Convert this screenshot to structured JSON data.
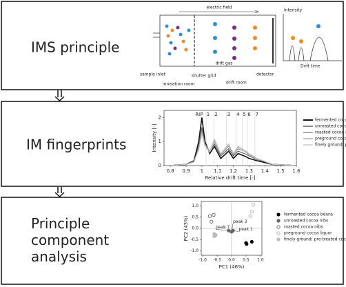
{
  "panels": [
    {
      "label": "IMS principle",
      "schematic": {
        "labels": [
          "electric field",
          "drift gas",
          "sample inlet",
          "ionisation room",
          "shutter grid",
          "drift room",
          "detector"
        ],
        "spectrum_labels": [
          "Intensity",
          "Drift time"
        ]
      }
    },
    {
      "label": "IM fingerprints",
      "chart": {
        "type": "line",
        "x_label": "Relative drift time [-]",
        "y_label": "Intensity [-]",
        "xlim": [
          0.76,
          1.6
        ],
        "ylim": [
          0,
          2.3
        ],
        "xticks": [
          0.8,
          0.9,
          1,
          1.1,
          1.2,
          1.3,
          1.4,
          1.5,
          1.6
        ],
        "yticks": [
          0,
          1,
          2
        ],
        "peak_labels": [
          "RIP",
          "1",
          "2",
          "3",
          "4",
          "5",
          "6",
          "7"
        ],
        "x": [
          0.8,
          0.9,
          0.95,
          0.98,
          1.0,
          1.02,
          1.05,
          1.08,
          1.12,
          1.17,
          1.2,
          1.23,
          1.27,
          1.3,
          1.35,
          1.45,
          1.6
        ],
        "series": [
          {
            "name": "fermented cocoa beans",
            "color": "#111111",
            "width": 1.6,
            "values": [
              0,
              0.05,
              0.2,
              1.0,
              2.0,
              1.0,
              0.5,
              0.8,
              0.3,
              0.6,
              0.3,
              0.5,
              0.4,
              0.3,
              0.2,
              0.05,
              0
            ]
          },
          {
            "name": "unroasted cocoa nibs",
            "color": "#555555",
            "width": 1,
            "values": [
              0,
              0.05,
              0.2,
              0.8,
              1.6,
              0.9,
              0.6,
              0.9,
              0.4,
              0.7,
              0.4,
              0.6,
              0.5,
              0.4,
              0.25,
              0.05,
              0
            ]
          },
          {
            "name": "roasted cocoa nibs",
            "color": "#888888",
            "width": 1,
            "values": [
              0,
              0.05,
              0.15,
              0.7,
              1.5,
              0.9,
              0.6,
              1.0,
              0.45,
              0.8,
              0.45,
              0.7,
              0.6,
              0.45,
              0.3,
              0.05,
              0
            ]
          },
          {
            "name": "preground cocoa liquor",
            "color": "#aaaaaa",
            "width": 1,
            "values": [
              0,
              0.05,
              0.15,
              0.7,
              1.4,
              0.8,
              0.6,
              1.1,
              0.5,
              0.9,
              0.5,
              0.8,
              0.65,
              0.5,
              0.3,
              0.05,
              0
            ]
          },
          {
            "name": "finely ground, pre-treated cocoa liquor",
            "color": "#c8c8c8",
            "width": 1,
            "values": [
              0,
              0.05,
              0.15,
              0.65,
              1.3,
              0.8,
              0.55,
              1.05,
              0.5,
              0.85,
              0.5,
              0.75,
              0.6,
              0.5,
              0.3,
              0.05,
              0
            ]
          }
        ]
      }
    },
    {
      "label": "Principle component analysis",
      "chart": {
        "type": "scatter",
        "x_label": "PC1 (46%)",
        "y_label": "PC2 (43%)",
        "xlim": [
          -1.05,
          1.05
        ],
        "ylim": [
          -1.2,
          1.2
        ],
        "xticks": [
          {
            "value": -1,
            "label": "-1.0"
          },
          -0.5,
          {
            "value": 0,
            "label": "0.0"
          },
          0.5,
          {
            "value": 1,
            "label": "1.0"
          }
        ],
        "yticks": [
          {
            "value": -1,
            "label": "-1.0"
          },
          -0.5,
          {
            "value": 0,
            "label": "0.0"
          },
          0.5,
          {
            "value": 1,
            "label": "1.0"
          }
        ],
        "annotations": [
          "peak 3",
          "peak 7",
          "peak 1"
        ],
        "series": [
          {
            "name": "fermented cocoa beans",
            "color": "#000000",
            "filled": true,
            "x": [
              0.5,
              0.7,
              0.52
            ],
            "y": [
              -0.65,
              -0.6,
              -0.7
            ]
          },
          {
            "name": "unroasted cocoa nibs",
            "color": "#666666",
            "filled": true,
            "x": [
              -0.1,
              0.0,
              0.05
            ],
            "y": [
              -0.1,
              -0.15,
              -0.1
            ]
          },
          {
            "name": "roasted cocoa nibs",
            "color": "#555555",
            "filled": false,
            "x": [
              -0.75,
              -0.7,
              -0.62
            ],
            "y": [
              0.55,
              0.3,
              0.6
            ]
          },
          {
            "name": "preground cocoa liquor",
            "color": "#aaaaaa",
            "filled": false,
            "x": [
              0.75,
              0.7,
              0.65
            ],
            "y": [
              1.05,
              0.75,
              0.55
            ]
          },
          {
            "name": "finely ground; pre-treated cocoa liquor",
            "color": "#bbbbbb",
            "filled": true,
            "x": [
              -0.6,
              -0.55,
              -0.6
            ],
            "y": [
              -0.35,
              -0.3,
              -0.25
            ]
          }
        ]
      }
    }
  ]
}
